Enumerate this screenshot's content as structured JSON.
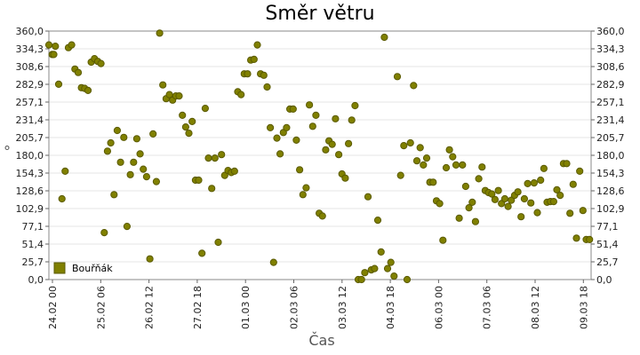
{
  "chart_data": {
    "type": "scatter",
    "title": "Směr větru",
    "xlabel": "Čas",
    "ylabel": "°",
    "ylim": [
      0,
      360
    ],
    "y_tick_labels": [
      "0,0",
      "25,7",
      "51,4",
      "77,1",
      "102,9",
      "128,6",
      "154,3",
      "180,0",
      "205,7",
      "231,4",
      "257,1",
      "282,9",
      "308,6",
      "334,3",
      "360,0"
    ],
    "x_tick_labels": [
      "24.02 00",
      "25.02 06",
      "26.02 12",
      "27.02 18",
      "01.03 00",
      "02.03 06",
      "03.03 12",
      "04.03 18",
      "06.03 00",
      "07.03 06",
      "08.03 12",
      "09.03 18"
    ],
    "grid": true,
    "legend_position": "bottom-left",
    "colors": {
      "marker": "#808000",
      "marker_edge": "#5a5a00",
      "grid": "#e6e6e6"
    },
    "series": [
      {
        "name": "Bouřňák",
        "points": [
          [
            0,
            340
          ],
          [
            2,
            326
          ],
          [
            3,
            326
          ],
          [
            4,
            338
          ],
          [
            6,
            283
          ],
          [
            8,
            117
          ],
          [
            10,
            157
          ],
          [
            12,
            336
          ],
          [
            14,
            340
          ],
          [
            16,
            305
          ],
          [
            18,
            300
          ],
          [
            20,
            278
          ],
          [
            22,
            277
          ],
          [
            24,
            274
          ],
          [
            26,
            315
          ],
          [
            28,
            320
          ],
          [
            30,
            316
          ],
          [
            32,
            313
          ],
          [
            34,
            68
          ],
          [
            36,
            186
          ],
          [
            38,
            198
          ],
          [
            40,
            123
          ],
          [
            42,
            216
          ],
          [
            44,
            170
          ],
          [
            46,
            206
          ],
          [
            48,
            77
          ],
          [
            50,
            152
          ],
          [
            52,
            170
          ],
          [
            54,
            204
          ],
          [
            56,
            182
          ],
          [
            58,
            160
          ],
          [
            60,
            149
          ],
          [
            62,
            30
          ],
          [
            64,
            211
          ],
          [
            66,
            142
          ],
          [
            68,
            357
          ],
          [
            70,
            282
          ],
          [
            72,
            262
          ],
          [
            74,
            268
          ],
          [
            76,
            260
          ],
          [
            78,
            266
          ],
          [
            80,
            266
          ],
          [
            82,
            238
          ],
          [
            84,
            221
          ],
          [
            86,
            212
          ],
          [
            88,
            229
          ],
          [
            90,
            144
          ],
          [
            92,
            144
          ],
          [
            94,
            38
          ],
          [
            96,
            248
          ],
          [
            98,
            176
          ],
          [
            100,
            132
          ],
          [
            102,
            176
          ],
          [
            104,
            54
          ],
          [
            106,
            181
          ],
          [
            108,
            151
          ],
          [
            110,
            158
          ],
          [
            112,
            155
          ],
          [
            114,
            157
          ],
          [
            116,
            272
          ],
          [
            118,
            268
          ],
          [
            120,
            298
          ],
          [
            122,
            298
          ],
          [
            124,
            318
          ],
          [
            126,
            319
          ],
          [
            128,
            340
          ],
          [
            130,
            298
          ],
          [
            132,
            296
          ],
          [
            134,
            279
          ],
          [
            136,
            220
          ],
          [
            138,
            25
          ],
          [
            140,
            205
          ],
          [
            142,
            182
          ],
          [
            144,
            213
          ],
          [
            146,
            220
          ],
          [
            148,
            247
          ],
          [
            150,
            247
          ],
          [
            152,
            202
          ],
          [
            154,
            159
          ],
          [
            156,
            123
          ],
          [
            158,
            133
          ],
          [
            160,
            253
          ],
          [
            162,
            222
          ],
          [
            164,
            238
          ],
          [
            166,
            96
          ],
          [
            168,
            92
          ],
          [
            170,
            188
          ],
          [
            172,
            201
          ],
          [
            174,
            196
          ],
          [
            176,
            233
          ],
          [
            178,
            181
          ],
          [
            180,
            153
          ],
          [
            182,
            147
          ],
          [
            184,
            197
          ],
          [
            186,
            231
          ],
          [
            188,
            252
          ],
          [
            190,
            0
          ],
          [
            192,
            0
          ],
          [
            194,
            10
          ],
          [
            196,
            120
          ],
          [
            198,
            14
          ],
          [
            200,
            16
          ],
          [
            202,
            86
          ],
          [
            204,
            40
          ],
          [
            206,
            351
          ],
          [
            208,
            16
          ],
          [
            210,
            25
          ],
          [
            212,
            5
          ],
          [
            214,
            294
          ],
          [
            216,
            151
          ],
          [
            218,
            194
          ],
          [
            220,
            0
          ],
          [
            222,
            198
          ],
          [
            224,
            281
          ],
          [
            226,
            172
          ],
          [
            228,
            191
          ],
          [
            230,
            166
          ],
          [
            232,
            176
          ],
          [
            234,
            141
          ],
          [
            236,
            141
          ],
          [
            238,
            114
          ],
          [
            240,
            110
          ],
          [
            242,
            57
          ],
          [
            244,
            162
          ],
          [
            246,
            188
          ],
          [
            248,
            178
          ],
          [
            250,
            166
          ],
          [
            252,
            89
          ],
          [
            254,
            166
          ],
          [
            256,
            135
          ],
          [
            258,
            104
          ],
          [
            260,
            112
          ],
          [
            262,
            84
          ],
          [
            264,
            146
          ],
          [
            266,
            163
          ],
          [
            268,
            129
          ],
          [
            270,
            126
          ],
          [
            272,
            124
          ],
          [
            274,
            116
          ],
          [
            276,
            129
          ],
          [
            278,
            110
          ],
          [
            280,
            117
          ],
          [
            282,
            106
          ],
          [
            284,
            115
          ],
          [
            286,
            122
          ],
          [
            288,
            127
          ],
          [
            290,
            91
          ],
          [
            292,
            117
          ],
          [
            294,
            139
          ],
          [
            296,
            111
          ],
          [
            298,
            140
          ],
          [
            300,
            97
          ],
          [
            302,
            144
          ],
          [
            304,
            161
          ],
          [
            306,
            112
          ],
          [
            308,
            113
          ],
          [
            310,
            113
          ],
          [
            312,
            130
          ],
          [
            314,
            122
          ],
          [
            316,
            168
          ],
          [
            318,
            168
          ],
          [
            320,
            96
          ],
          [
            322,
            138
          ],
          [
            324,
            60
          ],
          [
            326,
            157
          ],
          [
            328,
            100
          ],
          [
            330,
            58
          ],
          [
            332,
            58
          ]
        ]
      }
    ]
  }
}
